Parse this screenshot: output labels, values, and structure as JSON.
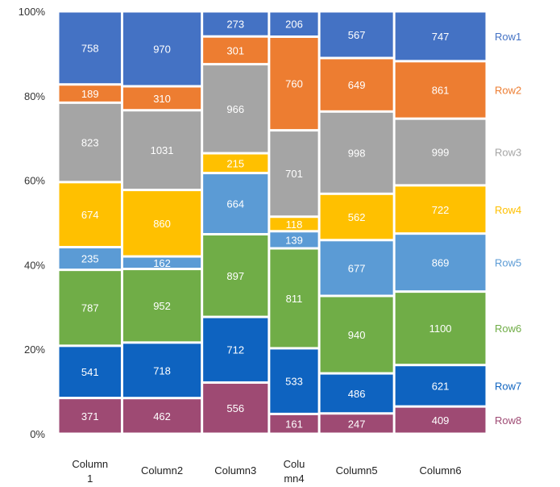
{
  "chart_data": {
    "type": "mekko",
    "title": "",
    "xlabel": "",
    "ylabel": "",
    "ylim": [
      0,
      100
    ],
    "y_ticks": [
      "0%",
      "20%",
      "40%",
      "60%",
      "80%",
      "100%"
    ],
    "columns": [
      {
        "label": [
          "Column",
          "1"
        ]
      },
      {
        "label": [
          "Column2"
        ]
      },
      {
        "label": [
          "Column3"
        ]
      },
      {
        "label": [
          "Colu",
          "mn4"
        ]
      },
      {
        "label": [
          "Column5"
        ]
      },
      {
        "label": [
          "Column6"
        ]
      }
    ],
    "series": [
      {
        "name": "Row1",
        "color": "#4472C4",
        "values": [
          758,
          970,
          273,
          206,
          567,
          747
        ]
      },
      {
        "name": "Row2",
        "color": "#ED7D31",
        "values": [
          189,
          310,
          301,
          760,
          649,
          861
        ]
      },
      {
        "name": "Row3",
        "color": "#A5A5A5",
        "values": [
          823,
          1031,
          966,
          701,
          998,
          999
        ]
      },
      {
        "name": "Row4",
        "color": "#FFC000",
        "values": [
          674,
          860,
          215,
          118,
          562,
          722
        ]
      },
      {
        "name": "Row5",
        "color": "#5B9BD5",
        "values": [
          235,
          162,
          664,
          139,
          677,
          869
        ]
      },
      {
        "name": "Row6",
        "color": "#70AD47",
        "values": [
          787,
          952,
          897,
          811,
          940,
          1100
        ]
      },
      {
        "name": "Row7",
        "color": "#0E63C0",
        "values": [
          541,
          718,
          712,
          533,
          486,
          621
        ]
      },
      {
        "name": "Row8",
        "color": "#9E4A73",
        "values": [
          371,
          462,
          556,
          161,
          247,
          409
        ]
      }
    ]
  }
}
